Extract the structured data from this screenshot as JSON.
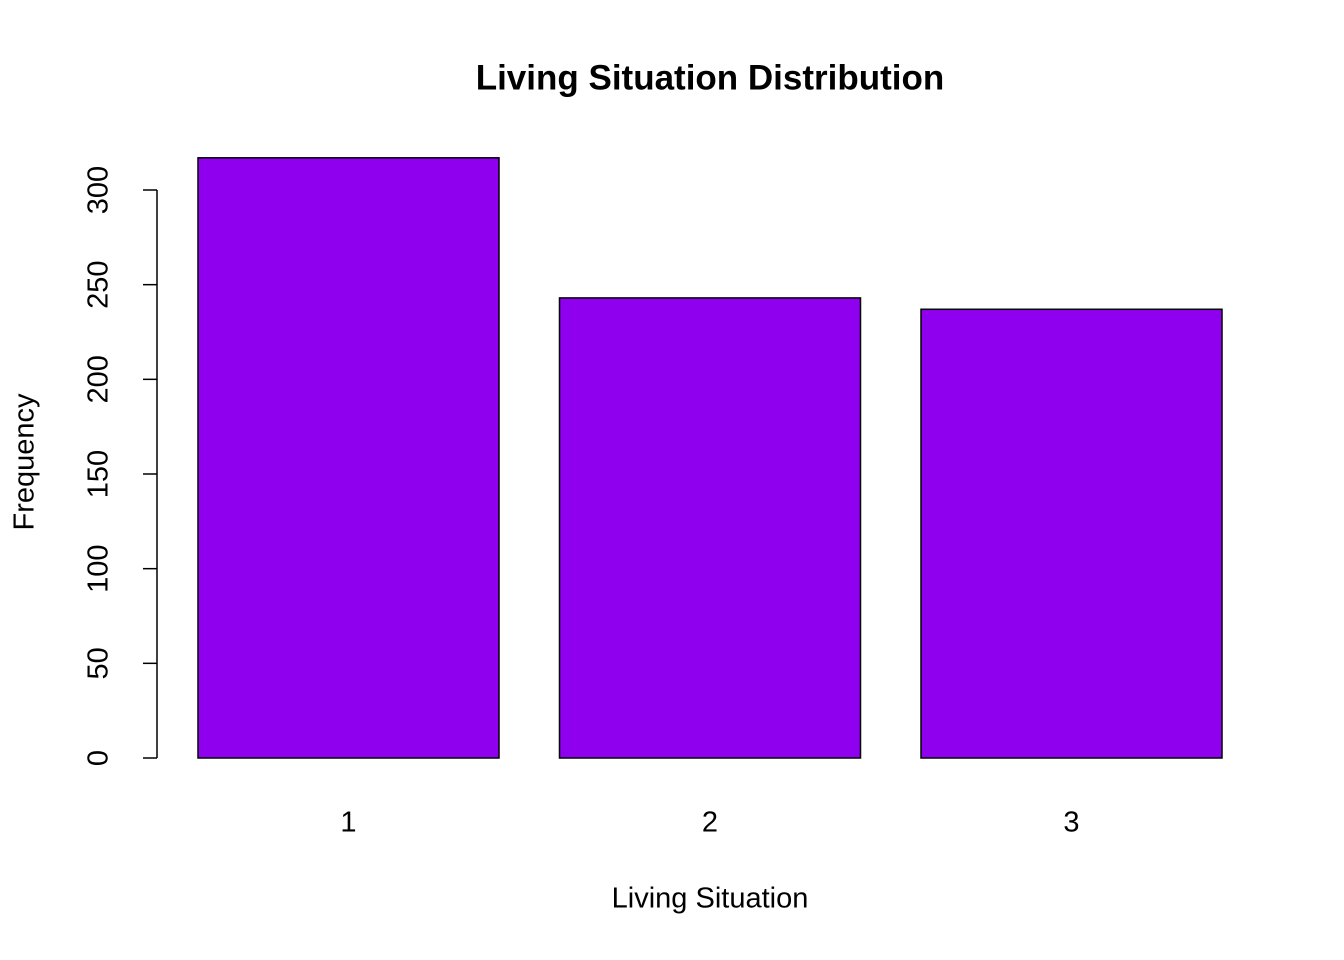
{
  "chart_data": {
    "type": "bar",
    "title": "Living Situation Distribution",
    "x_label": "Living Situation",
    "y_label": "Frequency",
    "categories": [
      "1",
      "2",
      "3"
    ],
    "values": [
      317,
      243,
      237
    ],
    "color": "#8f00ee",
    "ylim": [
      0,
      300
    ],
    "yticks": [
      0,
      50,
      100,
      150,
      200,
      250,
      300
    ]
  }
}
